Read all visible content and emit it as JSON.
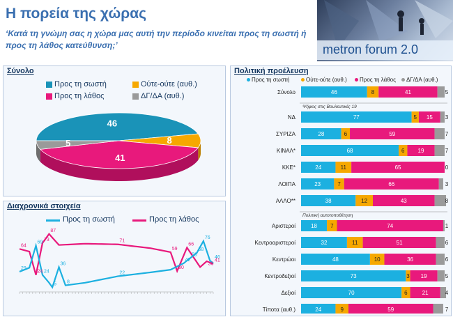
{
  "header": {
    "title": "Η πορεία της χώρας",
    "subtitle": "‘Κατά τη γνώμη σας η χώρα μας αυτή την περίοδο κινείται προς τη σωστή ή προς τη λάθος κατεύθυνση;’",
    "brand": "metron forum 2.0"
  },
  "colors": {
    "correct": "#1cb0e0",
    "neither": "#f6a800",
    "wrong": "#e8197c",
    "dk": "#9a9a9a"
  },
  "total_panel": {
    "title": "Σύνολο",
    "legend": [
      "Προς τη σωστή",
      "Ούτε-ούτε (αυθ.)",
      "Προς τη λάθος",
      "ΔΓ/ΔΑ (αυθ.)"
    ]
  },
  "trend_panel": {
    "title": "Διαχρονικά στοιχεία",
    "legend": [
      "Προς τη σωστή",
      "Προς τη λάθος"
    ]
  },
  "political_panel": {
    "title": "Πολιτική προέλευση",
    "legend": [
      "Προς τη σωστή",
      "Ούτε-ούτε (αυθ.)",
      "Προς τη λάθος",
      "ΔΓ/ΔΑ (αυθ.)"
    ],
    "vote_note": "Ψήφος στις Βουλευτικές 19",
    "self_note": "Πολιτική αυτοτοποθέτηση"
  },
  "chart_data": [
    {
      "type": "pie",
      "title": "Σύνολο",
      "categories": [
        "Προς τη σωστή",
        "Ούτε-ούτε (αυθ.)",
        "Προς τη λάθος",
        "ΔΓ/ΔΑ (αυθ.)"
      ],
      "values": [
        46,
        8,
        41,
        5
      ]
    },
    {
      "type": "line",
      "title": "Διαχρονικά στοιχεία",
      "series": [
        {
          "name": "Προς τη σωστή",
          "labeled_points": [
            29,
            69,
            24,
            5,
            36,
            8,
            22,
            50,
            42,
            58,
            76,
            46
          ]
        },
        {
          "name": "Προς τη λάθος",
          "labeled_points": [
            64,
            24,
            73,
            87,
            71,
            59,
            30,
            66,
            36,
            41
          ]
        }
      ]
    },
    {
      "type": "bar",
      "title": "Πολιτική προέλευση",
      "stacked": true,
      "series_names": [
        "Προς τη σωστή",
        "Ούτε-ούτε (αυθ.)",
        "Προς τη λάθος",
        "ΔΓ/ΔΑ (αυθ.)"
      ],
      "groups": [
        {
          "note": "",
          "rows": [
            {
              "label": "Σύνολο",
              "values": [
                46,
                8,
                41,
                5
              ]
            }
          ]
        },
        {
          "note": "Ψήφος στις Βουλευτικές 19",
          "rows": [
            {
              "label": "ΝΔ",
              "values": [
                77,
                5,
                15,
                3
              ]
            },
            {
              "label": "ΣΥΡΙΖΑ",
              "values": [
                28,
                6,
                59,
                7
              ]
            },
            {
              "label": "ΚΙΝΑΛ*",
              "values": [
                68,
                6,
                19,
                7
              ]
            },
            {
              "label": "ΚΚΕ*",
              "values": [
                24,
                11,
                65,
                0
              ]
            },
            {
              "label": "ΛΟΙΠΑ",
              "values": [
                23,
                7,
                66,
                3
              ]
            },
            {
              "label": "ΑΛΛΟ**",
              "values": [
                38,
                12,
                43,
                8
              ]
            }
          ]
        },
        {
          "note": "Πολιτική αυτοτοποθέτηση",
          "rows": [
            {
              "label": "Αριστεροί",
              "values": [
                18,
                7,
                74,
                1
              ]
            },
            {
              "label": "Κεντροαριστεροί",
              "values": [
                32,
                11,
                51,
                6
              ]
            },
            {
              "label": "Κεντρώοι",
              "values": [
                48,
                10,
                36,
                6
              ]
            },
            {
              "label": "Κεντροδεξιοί",
              "values": [
                73,
                3,
                19,
                5
              ]
            },
            {
              "label": "Δεξιοί",
              "values": [
                70,
                6,
                21,
                4
              ]
            },
            {
              "label": "Τίποτα (αυθ.)",
              "values": [
                24,
                9,
                59,
                7
              ]
            }
          ]
        }
      ]
    }
  ]
}
